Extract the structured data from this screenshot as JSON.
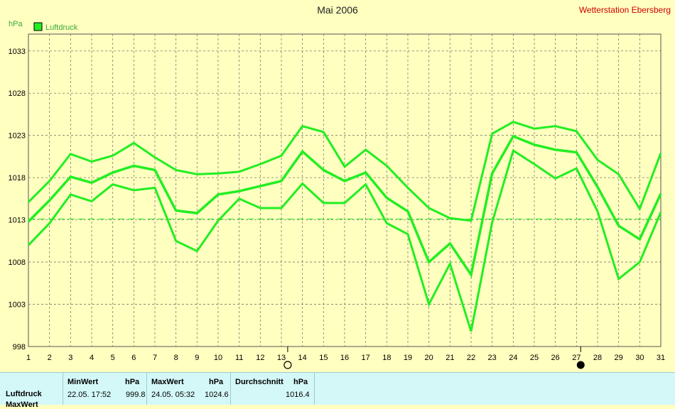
{
  "chart_data": {
    "type": "line",
    "title": "Mai 2006",
    "station": "Wetterstation Ebersberg",
    "ylabel": "hPa",
    "legend": [
      "Luftdruck"
    ],
    "legend_position": "top-left",
    "ylim": [
      998,
      1035
    ],
    "yticks": [
      998,
      1003,
      1008,
      1013,
      1018,
      1023,
      1028,
      1033
    ],
    "x": [
      1,
      2,
      3,
      4,
      5,
      6,
      7,
      8,
      9,
      10,
      11,
      12,
      13,
      14,
      15,
      16,
      17,
      18,
      19,
      20,
      21,
      22,
      23,
      24,
      25,
      26,
      27,
      28,
      29,
      30,
      31
    ],
    "grid": true,
    "average_line": 1013.1,
    "series": [
      {
        "name": "Luftdruck max",
        "values": [
          1015.1,
          1017.6,
          1020.8,
          1019.9,
          1020.6,
          1022.1,
          1020.4,
          1018.9,
          1018.4,
          1018.5,
          1018.7,
          1019.6,
          1020.6,
          1024.1,
          1023.4,
          1019.3,
          1021.3,
          1019.4,
          1016.8,
          1014.4,
          1013.2,
          1012.9,
          1023.2,
          1024.6,
          1023.8,
          1024.1,
          1023.5,
          1020.1,
          1018.4,
          1014.3,
          1020.9
        ]
      },
      {
        "name": "Luftdruck mittel",
        "values": [
          1012.8,
          1015.3,
          1018.1,
          1017.4,
          1018.6,
          1019.4,
          1018.9,
          1014.1,
          1013.8,
          1016.0,
          1016.4,
          1017.0,
          1017.6,
          1021.1,
          1018.9,
          1017.6,
          1018.6,
          1015.6,
          1014.0,
          1008.0,
          1010.2,
          1006.5,
          1018.5,
          1022.9,
          1021.9,
          1021.3,
          1021.0,
          1016.9,
          1012.3,
          1010.7,
          1016.1
        ]
      },
      {
        "name": "Luftdruck min",
        "values": [
          1010.0,
          1012.6,
          1016.0,
          1015.2,
          1017.2,
          1016.5,
          1016.8,
          1010.5,
          1009.3,
          1012.9,
          1015.5,
          1014.4,
          1014.4,
          1017.3,
          1015.0,
          1015.0,
          1017.2,
          1012.6,
          1011.3,
          1003.0,
          1007.8,
          999.8,
          1012.7,
          1021.2,
          1019.6,
          1017.9,
          1019.1,
          1014.0,
          1006.0,
          1008.0,
          1013.9
        ]
      }
    ],
    "moon_markers": [
      {
        "day": 13.3,
        "phase": "full"
      },
      {
        "day": 27.2,
        "phase": "new"
      }
    ]
  },
  "colors": {
    "background": "#ffffc0",
    "plot_background": "#ffffc0",
    "line": "#22ee22",
    "grid": "#7a7a6a",
    "station": "#d00000"
  },
  "stats": {
    "row_labels": [
      "Luftdruck",
      "MaxWert"
    ],
    "min_header": "MinWert",
    "min_unit": "hPa",
    "min_time": "22.05.  17:52",
    "min_value": "999.8",
    "max_header": "MaxWert",
    "max_unit": "hPa",
    "max_time": "24.05.  05:32",
    "max_value": "1024.6",
    "avg_header": "Durchschnitt",
    "avg_unit": "hPa",
    "avg_value": "1016.4"
  }
}
